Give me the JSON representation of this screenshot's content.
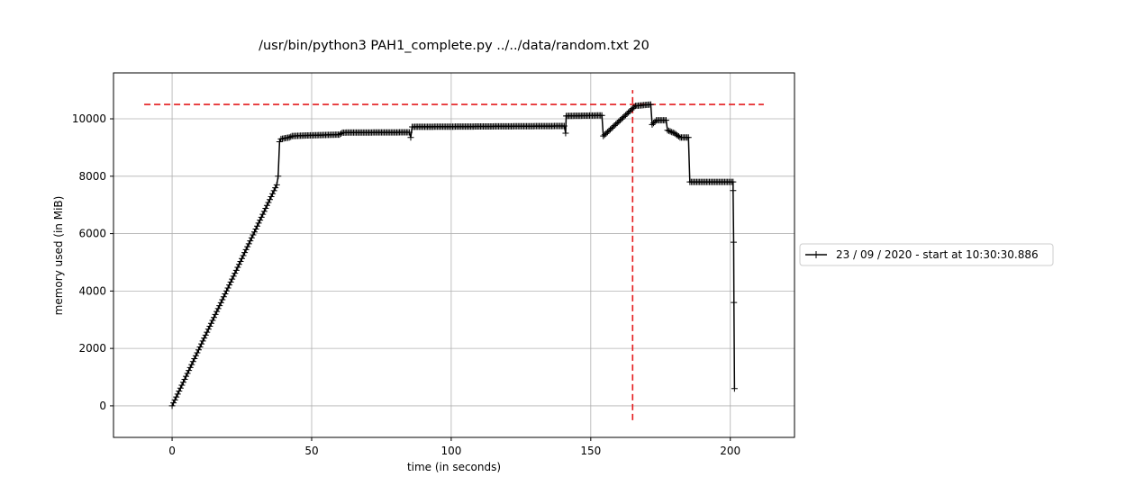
{
  "chart_data": {
    "type": "line",
    "title": "/usr/bin/python3 PAH1_complete.py ../../data/random.txt 20",
    "xlabel": "time (in seconds)",
    "ylabel": "memory used (in MiB)",
    "xlim": [
      -21,
      223
    ],
    "ylim": [
      -1100,
      11600
    ],
    "xticks": [
      0,
      50,
      100,
      150,
      200
    ],
    "yticks": [
      0,
      2000,
      4000,
      6000,
      8000,
      10000
    ],
    "grid": true,
    "legend_position": "right",
    "series": [
      {
        "name": "23 / 09 / 2020 - start at 10:30:30.886",
        "color": "#000000",
        "marker": "+",
        "points": [
          [
            0,
            0
          ],
          [
            37.5,
            7700
          ],
          [
            38,
            8000
          ],
          [
            38.5,
            9200
          ],
          [
            39,
            9300
          ],
          [
            42,
            9350
          ],
          [
            43,
            9400
          ],
          [
            48,
            9420
          ],
          [
            60,
            9450
          ],
          [
            61,
            9520
          ],
          [
            85,
            9530
          ],
          [
            85.5,
            9350
          ],
          [
            86,
            9720
          ],
          [
            140.5,
            9750
          ],
          [
            141,
            9500
          ],
          [
            141.2,
            10100
          ],
          [
            154,
            10120
          ],
          [
            154.5,
            9400
          ],
          [
            166,
            10450
          ],
          [
            171.5,
            10500
          ],
          [
            172,
            9800
          ],
          [
            173.5,
            9950
          ],
          [
            177,
            9950
          ],
          [
            177.5,
            9600
          ],
          [
            180,
            9500
          ],
          [
            182,
            9350
          ],
          [
            185,
            9350
          ],
          [
            185.5,
            7800
          ],
          [
            201,
            7800
          ],
          [
            201,
            7500
          ],
          [
            201.2,
            5700
          ],
          [
            201.3,
            3600
          ],
          [
            201.5,
            600
          ]
        ]
      }
    ],
    "reference_lines": [
      {
        "orientation": "horizontal",
        "value": 10500,
        "from": -10,
        "to": 212,
        "color": "#e41a1c",
        "style": "dashed"
      },
      {
        "orientation": "vertical",
        "value": 165,
        "from": -500,
        "to": 11000,
        "color": "#e41a1c",
        "style": "dashed"
      }
    ]
  }
}
